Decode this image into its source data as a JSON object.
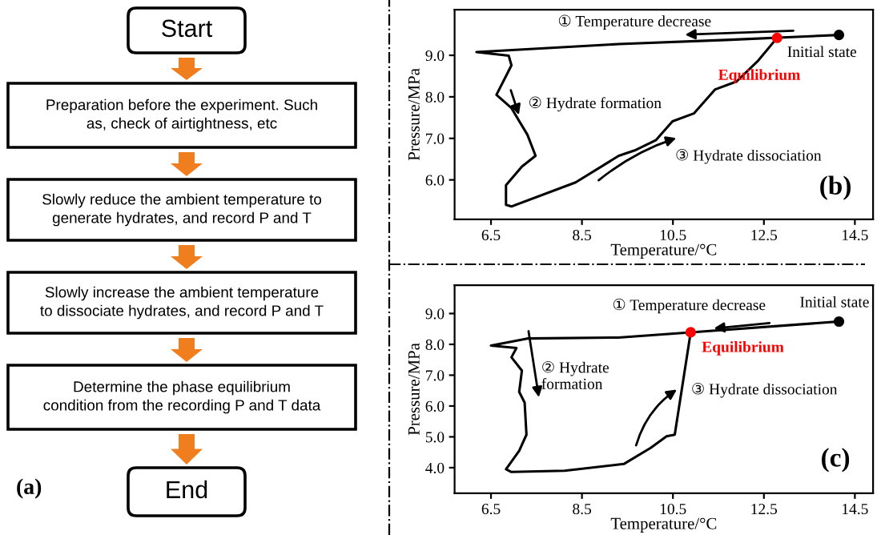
{
  "chart_data": [
    {
      "type": "other",
      "annotations": [
        "Start",
        "Preparation before the experiment. Such\nas, check of airtightness, etc",
        "Slowly reduce the ambient temperature to\ngenerate hydrates, and record P and T",
        "Slowly increase the ambient temperature\nto dissociate hydrates, and record P and T",
        "Determine the phase equilibrium\ncondition from the recording P and T data",
        "End",
        "(a)"
      ]
    },
    {
      "type": "line",
      "xlabel": "Temperature/°C",
      "ylabel": "Pressure/MPa",
      "xlim": [
        5.7,
        14.9
      ],
      "ylim": [
        5.05,
        10.1
      ],
      "xticks": [
        6.5,
        8.5,
        10.5,
        12.5,
        14.5
      ],
      "yticks": [
        {
          "value": 6,
          "label": "6.0"
        },
        {
          "value": 7,
          "label": "7.0"
        },
        {
          "value": 8,
          "label": "8.0"
        },
        {
          "value": 9,
          "label": "9.0"
        }
      ],
      "grid": false,
      "line_style": "solid",
      "series": [
        {
          "color": "#000000",
          "x": [
            14.15,
            11.67,
            9.31,
            6.18,
            6.89,
            6.95,
            6.83,
            6.62,
            6.95,
            7.3,
            7.48,
            7.18,
            6.83,
            6.83,
            6.95,
            8.36,
            9.31,
            9.66,
            10.13,
            10.49,
            10.96,
            11.43,
            11.9,
            12.38,
            12.79
          ],
          "values": [
            9.49,
            9.37,
            9.27,
            9.08,
            8.99,
            8.76,
            8.5,
            8.05,
            7.73,
            7.09,
            6.58,
            6.32,
            5.87,
            5.4,
            5.36,
            5.94,
            6.58,
            6.71,
            6.96,
            7.41,
            7.6,
            8.18,
            8.37,
            8.88,
            9.42
          ]
        },
        {
          "type": "scatter",
          "x": [
            12.79,
            14.15
          ],
          "values": [
            9.42,
            9.49
          ],
          "colors": [
            "#ff0000",
            "#000000"
          ]
        }
      ],
      "annotations": [
        "① Temperature decrease",
        "② Hydrate formation",
        "③ Hydrate dissociation",
        "(b)",
        {
          "text": "Equilibrium",
          "x": 12.79,
          "y": 9.42
        },
        {
          "text": "Initial state",
          "x": 14.15,
          "y": 9.49
        }
      ]
    },
    {
      "type": "line",
      "xlabel": "Temperature/°C",
      "ylabel": "Pressure/MPa",
      "xlim": [
        5.7,
        14.9
      ],
      "ylim": [
        3.17,
        9.92
      ],
      "xticks": [
        6.5,
        8.5,
        10.5,
        12.5,
        14.5
      ],
      "yticks": [
        {
          "value": 4,
          "label": "4.0"
        },
        {
          "value": 5,
          "label": "5.0"
        },
        {
          "value": 6,
          "label": "6.0"
        },
        {
          "value": 7,
          "label": "7.0"
        },
        {
          "value": 8,
          "label": "8.0"
        },
        {
          "value": 9,
          "label": "9.0"
        }
      ],
      "grid": false,
      "line_style": "solid",
      "series": [
        {
          "color": "#000000",
          "x": [
            14.15,
            10.89,
            9.3,
            7.3,
            6.5,
            7.06,
            6.95,
            7.18,
            7.12,
            7.24,
            7.28,
            7.12,
            6.83,
            6.95,
            8.12,
            9.42,
            10.01,
            10.36,
            10.54,
            10.89
          ],
          "values": [
            8.74,
            8.39,
            8.22,
            8.19,
            7.96,
            7.88,
            7.58,
            7.15,
            6.46,
            6.11,
            5.07,
            4.55,
            3.95,
            3.86,
            3.9,
            4.12,
            4.64,
            5.02,
            5.07,
            8.39
          ]
        },
        {
          "type": "scatter",
          "x": [
            10.89,
            14.15
          ],
          "values": [
            8.39,
            8.74
          ],
          "colors": [
            "#ff0000",
            "#000000"
          ]
        }
      ],
      "annotations": [
        "① Temperature decrease",
        "② Hydrate\nformation",
        "③ Hydrate dissociation",
        "(c)",
        {
          "text": "Equilibrium",
          "x": 10.89,
          "y": 8.39
        },
        {
          "text": "Initial state",
          "x": 14.15,
          "y": 8.74
        }
      ]
    }
  ]
}
